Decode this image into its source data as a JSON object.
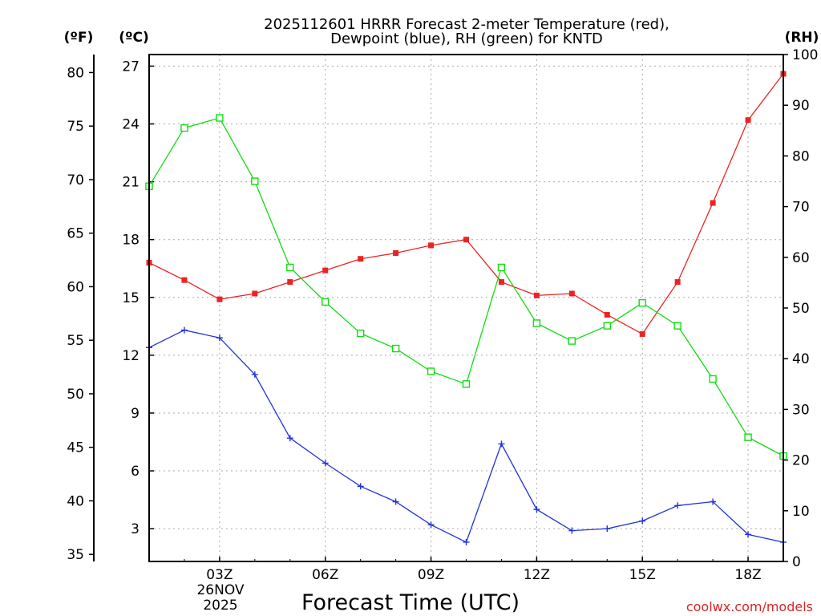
{
  "chart_data": {
    "type": "line",
    "title_line1": "2025112601 HRRR Forecast 2-meter Temperature (red),",
    "title_line2": "Dewpoint (blue), RH (green) for KNTD",
    "xlabel": "Forecast Time (UTC)",
    "left_outer_unit": "(ºF)",
    "left_inner_unit": "(ºC)",
    "right_unit": "(RH)",
    "date_label_line1": "26NOV",
    "date_label_line2": "2025",
    "credit": "coolwx.com/models",
    "x_hours": [
      1,
      2,
      3,
      4,
      5,
      6,
      7,
      8,
      9,
      10,
      11,
      12,
      13,
      14,
      15,
      16,
      17,
      18,
      19
    ],
    "x_range": [
      1,
      19
    ],
    "x_ticks": [
      {
        "hour": 3,
        "label": "03Z"
      },
      {
        "hour": 6,
        "label": "06Z"
      },
      {
        "hour": 9,
        "label": "09Z"
      },
      {
        "hour": 12,
        "label": "12Z"
      },
      {
        "hour": 15,
        "label": "15Z"
      },
      {
        "hour": 18,
        "label": "18Z"
      }
    ],
    "celsius_range": [
      1.3,
      27.6
    ],
    "celsius_ticks": [
      3,
      6,
      9,
      12,
      15,
      18,
      21,
      24,
      27
    ],
    "fahrenheit_ticks": [
      35,
      40,
      45,
      50,
      55,
      60,
      65,
      70,
      75,
      80
    ],
    "rh_range": [
      0,
      100
    ],
    "rh_ticks": [
      0,
      10,
      20,
      30,
      40,
      50,
      60,
      70,
      80,
      90,
      100
    ],
    "series": [
      {
        "name": "Temperature",
        "unit": "C",
        "color": "#ee2222",
        "marker": "filled-square",
        "values": [
          16.8,
          15.9,
          14.9,
          15.2,
          15.8,
          16.4,
          17.0,
          17.3,
          17.7,
          18.0,
          15.8,
          15.1,
          15.2,
          14.1,
          13.1,
          15.8,
          19.9,
          24.2,
          26.6
        ]
      },
      {
        "name": "Dewpoint",
        "unit": "C",
        "color": "#2233dd",
        "marker": "plus",
        "values": [
          12.4,
          13.3,
          12.9,
          11.0,
          7.7,
          6.4,
          5.2,
          4.4,
          3.2,
          2.3,
          7.4,
          4.0,
          2.9,
          3.0,
          3.4,
          4.2,
          4.4,
          2.7,
          2.3
        ]
      },
      {
        "name": "RH",
        "unit": "%",
        "color": "#11dd11",
        "marker": "open-square",
        "values": [
          74,
          85.5,
          87.5,
          75,
          58,
          51.2,
          45,
          42,
          37.5,
          35,
          58,
          47,
          43.5,
          46.5,
          51,
          46.5,
          36,
          24.5,
          20.8
        ]
      }
    ]
  }
}
